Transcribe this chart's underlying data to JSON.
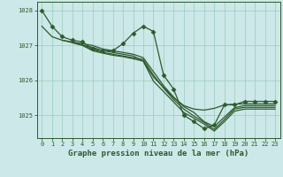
{
  "background_color": "#cce8e8",
  "grid_color": "#99ccbb",
  "line_color": "#2d5a2d",
  "title": "Graphe pression niveau de la mer (hPa)",
  "title_fontsize": 6.5,
  "xlim": [
    -0.5,
    23.5
  ],
  "ylim": [
    1024.35,
    1028.25
  ],
  "yticks": [
    1025,
    1026,
    1027,
    1028
  ],
  "xticks": [
    0,
    1,
    2,
    3,
    4,
    5,
    6,
    7,
    8,
    9,
    10,
    11,
    12,
    13,
    14,
    15,
    16,
    17,
    18,
    19,
    20,
    21,
    22,
    23
  ],
  "series": [
    {
      "x": [
        0,
        1,
        2,
        3,
        4,
        5,
        6,
        7,
        8,
        9,
        10,
        11,
        12,
        13,
        14,
        15,
        16,
        17,
        18,
        19,
        20,
        21,
        22,
        23
      ],
      "y": [
        1028.0,
        1027.55,
        1027.25,
        1027.15,
        1027.1,
        1026.9,
        1026.85,
        1026.85,
        1027.05,
        1027.35,
        1027.55,
        1027.4,
        1026.15,
        1025.75,
        1025.0,
        1024.82,
        1024.62,
        1024.72,
        1025.3,
        1025.3,
        1025.4,
        1025.4,
        1025.4,
        1025.4
      ],
      "has_marker": true,
      "marker": "D",
      "markersize": 2.5,
      "linewidth": 0.9
    },
    {
      "x": [
        0,
        1,
        2,
        3,
        4,
        5,
        6,
        7,
        8,
        9,
        10,
        11,
        12,
        13,
        14,
        15,
        16,
        17,
        18,
        19,
        20,
        21,
        22,
        23
      ],
      "y": [
        1027.55,
        1027.25,
        1027.15,
        1027.08,
        1027.0,
        1026.95,
        1026.85,
        1026.8,
        1026.75,
        1026.7,
        1026.55,
        1026.1,
        1025.8,
        1025.5,
        1025.28,
        1025.18,
        1025.15,
        1025.2,
        1025.3,
        1025.32,
        1025.33,
        1025.33,
        1025.33,
        1025.33
      ],
      "has_marker": false,
      "linewidth": 0.9
    },
    {
      "x": [
        2,
        3,
        4,
        5,
        6,
        7,
        8,
        9,
        10,
        11,
        12,
        13,
        14,
        15,
        16,
        17,
        18,
        19,
        20,
        21,
        22,
        23
      ],
      "y": [
        1027.15,
        1027.1,
        1027.05,
        1027.0,
        1026.9,
        1026.85,
        1026.8,
        1026.75,
        1026.65,
        1026.25,
        1025.85,
        1025.52,
        1025.25,
        1025.08,
        1024.82,
        1024.68,
        1024.95,
        1025.22,
        1025.28,
        1025.28,
        1025.28,
        1025.28
      ],
      "has_marker": false,
      "linewidth": 0.9
    },
    {
      "x": [
        3,
        4,
        5,
        6,
        7,
        8,
        9,
        10,
        11,
        12,
        13,
        14,
        15,
        16,
        17,
        18,
        19,
        20,
        21,
        22,
        23
      ],
      "y": [
        1027.08,
        1027.02,
        1026.88,
        1026.8,
        1026.75,
        1026.7,
        1026.65,
        1026.6,
        1026.15,
        1025.78,
        1025.45,
        1025.18,
        1024.98,
        1024.8,
        1024.6,
        1024.88,
        1025.18,
        1025.23,
        1025.23,
        1025.23,
        1025.23
      ],
      "has_marker": false,
      "linewidth": 0.9
    },
    {
      "x": [
        4,
        5,
        6,
        7,
        8,
        9,
        10,
        11,
        12,
        13,
        14,
        15,
        16,
        17,
        18,
        19,
        20,
        21,
        22,
        23
      ],
      "y": [
        1027.0,
        1026.85,
        1026.78,
        1026.72,
        1026.68,
        1026.62,
        1026.55,
        1025.98,
        1025.68,
        1025.38,
        1025.08,
        1024.92,
        1024.75,
        1024.55,
        1024.82,
        1025.12,
        1025.18,
        1025.18,
        1025.18,
        1025.18
      ],
      "has_marker": false,
      "linewidth": 0.9
    }
  ]
}
